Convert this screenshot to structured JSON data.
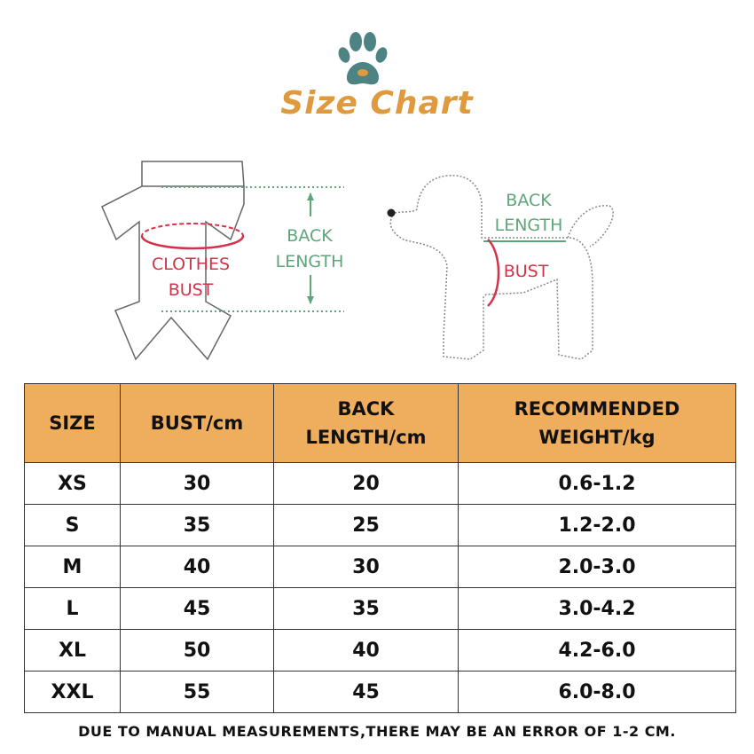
{
  "title": "Size Chart",
  "icons": {
    "logo": "paw-icon"
  },
  "colors": {
    "title": "#DE9A3C",
    "header_bg": "#EFAE5E",
    "paw": "#4E8383",
    "paw_center": "#E0993E",
    "green_label": "#5FA57A",
    "red_label": "#D0334A"
  },
  "diagram_clothes": {
    "bust_label_1": "CLOTHES",
    "bust_label_2": "BUST",
    "back_label_1": "BACK",
    "back_label_2": "LENGTH"
  },
  "diagram_dog": {
    "back_label_1": "BACK",
    "back_label_2": "LENGTH",
    "bust_label": "BUST"
  },
  "table": {
    "headers": [
      [
        "SIZE",
        ""
      ],
      [
        "BUST/cm",
        ""
      ],
      [
        "BACK",
        "LENGTH/cm"
      ],
      [
        "RECOMMENDED",
        "WEIGHT/kg"
      ]
    ],
    "rows": [
      [
        "XS",
        "30",
        "20",
        "0.6-1.2"
      ],
      [
        "S",
        "35",
        "25",
        "1.2-2.0"
      ],
      [
        "M",
        "40",
        "30",
        "2.0-3.0"
      ],
      [
        "L",
        "45",
        "35",
        "3.0-4.2"
      ],
      [
        "XL",
        "50",
        "40",
        "4.2-6.0"
      ],
      [
        "XXL",
        "55",
        "45",
        "6.0-8.0"
      ]
    ]
  },
  "note": "DUE TO MANUAL MEASUREMENTS,THERE MAY BE AN ERROR OF 1-2 CM."
}
